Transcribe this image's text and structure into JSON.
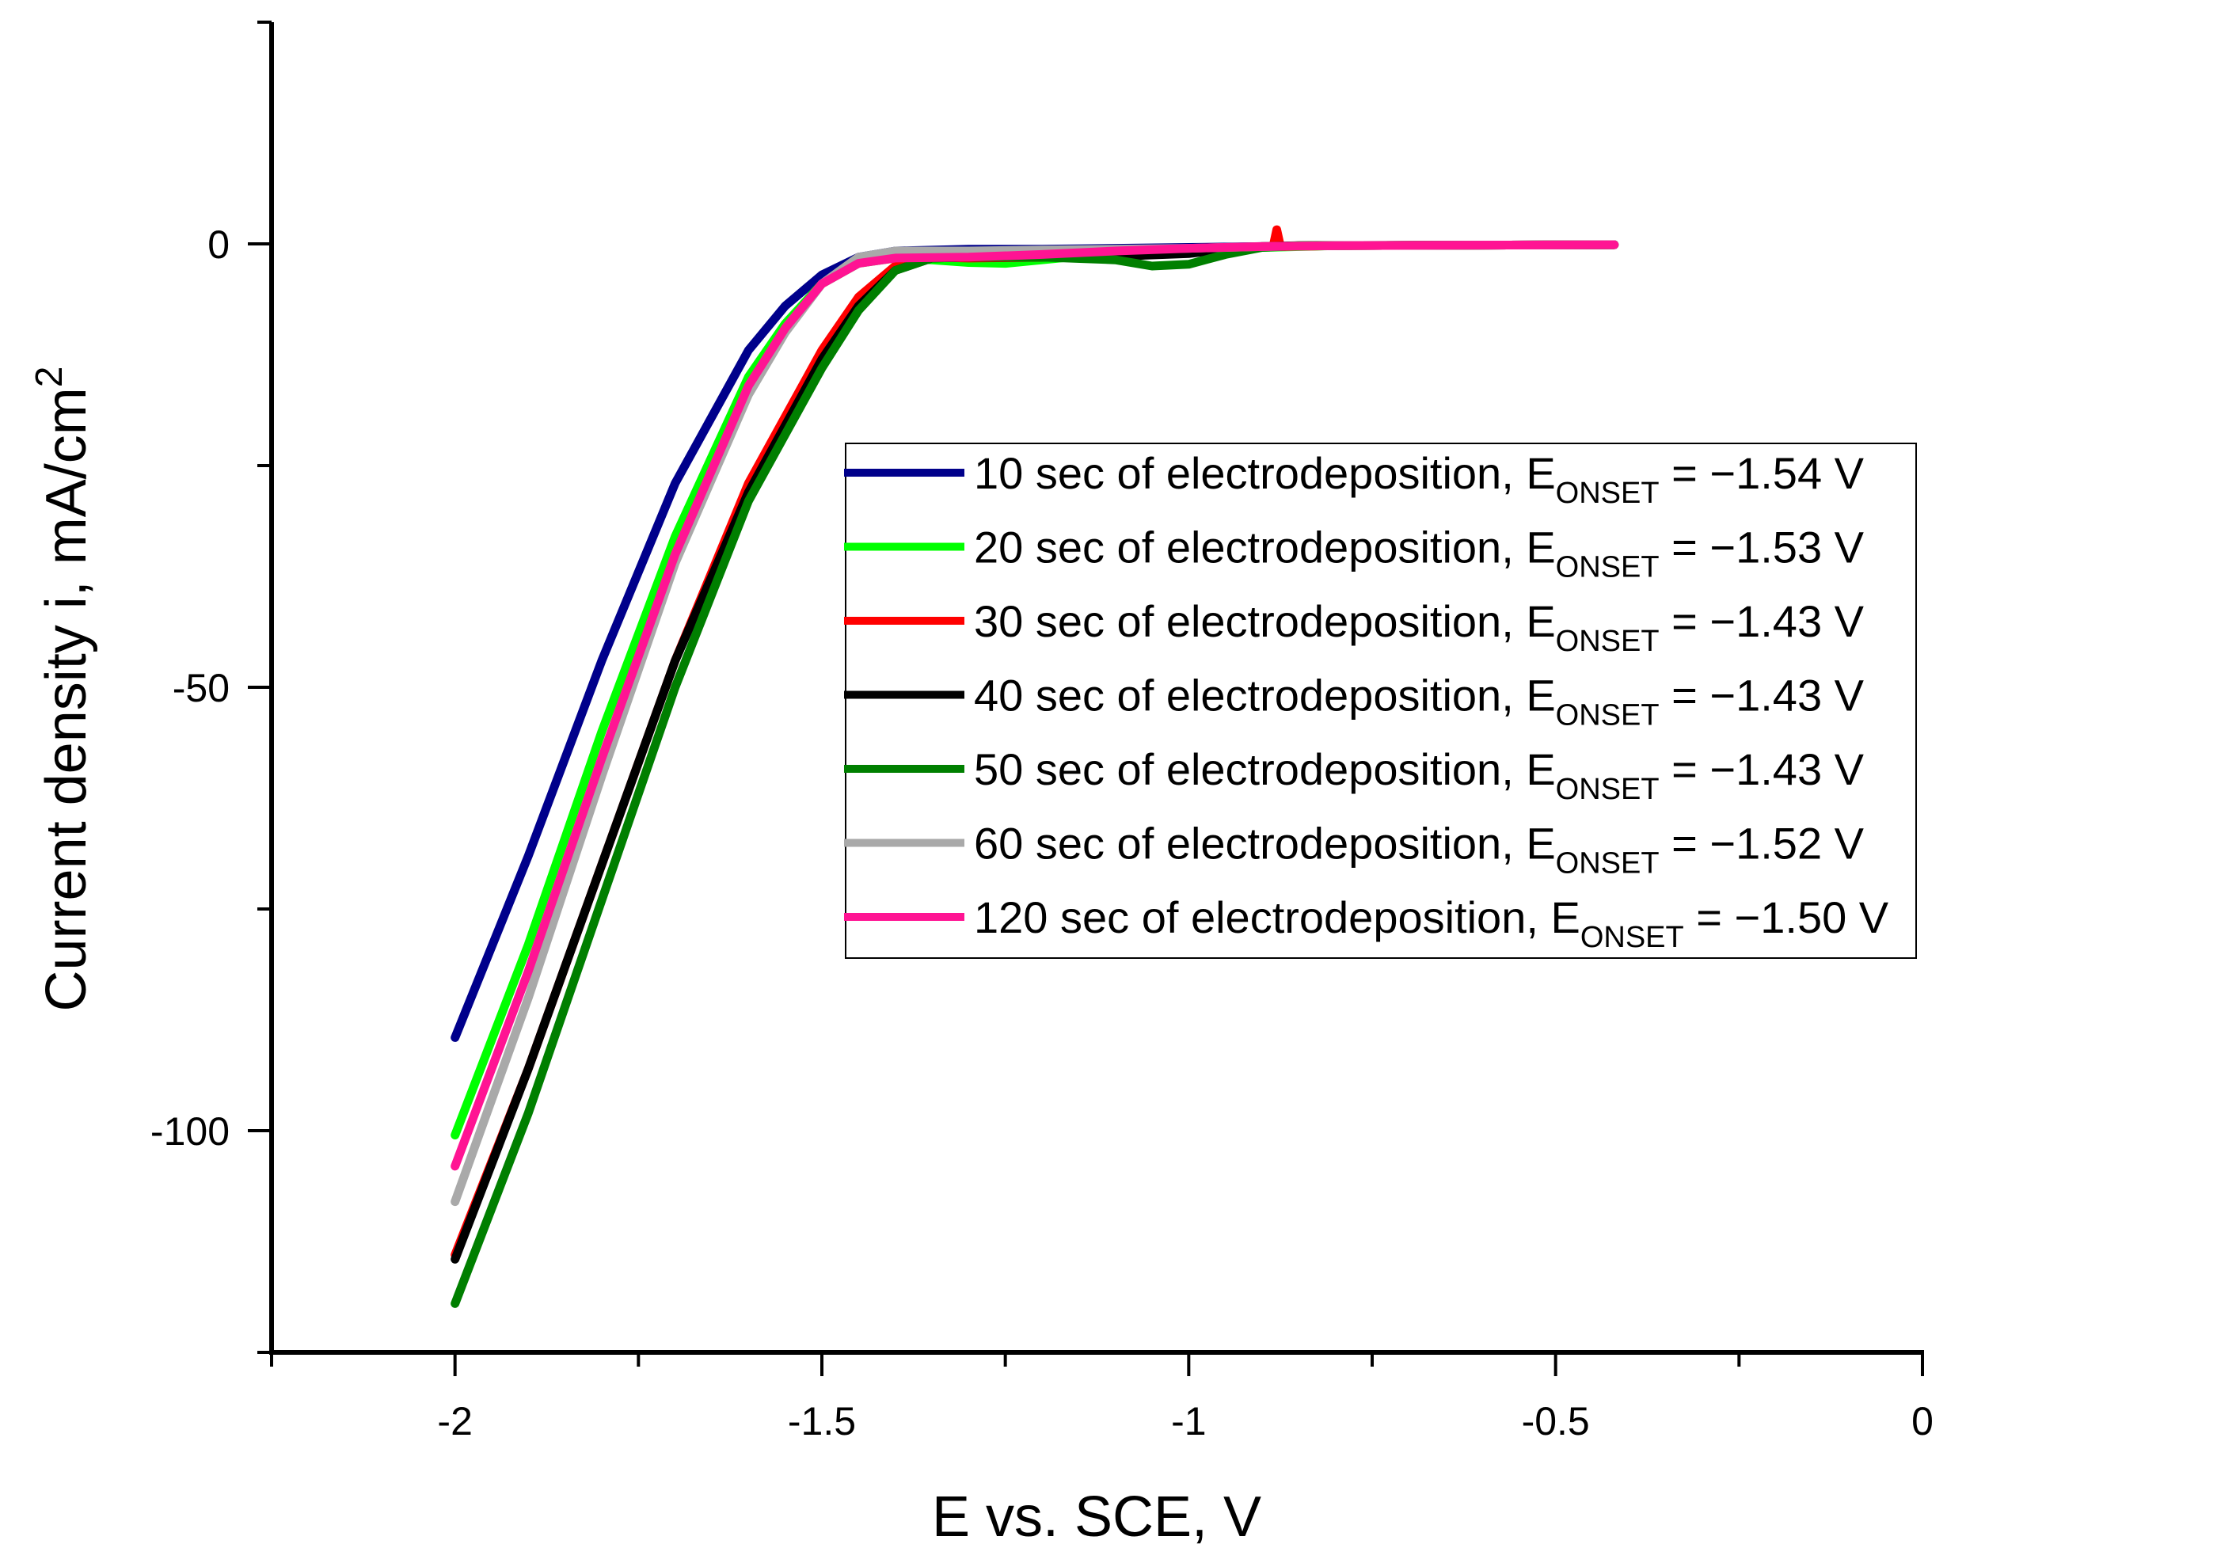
{
  "chart_data": {
    "type": "line",
    "title": "",
    "xlabel": "E vs. SCE, V",
    "ylabel_main": "Current density i, mA/cm",
    "ylabel_sup": "2",
    "xlim": [
      -2.25,
      0
    ],
    "ylim": [
      -125,
      25
    ],
    "x_ticks": [
      {
        "value": -2,
        "label": "-2"
      },
      {
        "value": -1.5,
        "label": "-1.5"
      },
      {
        "value": -1,
        "label": "-1"
      },
      {
        "value": -0.5,
        "label": "-0.5"
      },
      {
        "value": 0,
        "label": "0"
      }
    ],
    "x_minor_ticks": [
      -2.25,
      -1.75,
      -1.25,
      -0.75,
      -0.25
    ],
    "y_ticks": [
      {
        "value": 0,
        "label": "0"
      },
      {
        "value": -50,
        "label": "-50"
      },
      {
        "value": -100,
        "label": "-100"
      }
    ],
    "y_minor_ticks": [
      25,
      -25,
      -75,
      -125
    ],
    "legend_position": "center-right",
    "series": [
      {
        "name": "10 sec",
        "color": "#00008B",
        "legend": {
          "pre": "10 sec of electrodeposition, E",
          "sub": "ONSET",
          "post": " = −1.54 V"
        },
        "points": [
          [
            -2.0,
            -89.5
          ],
          [
            -1.9,
            -69
          ],
          [
            -1.8,
            -47
          ],
          [
            -1.7,
            -27
          ],
          [
            -1.6,
            -12
          ],
          [
            -1.55,
            -7
          ],
          [
            -1.5,
            -3.5
          ],
          [
            -1.45,
            -1.5
          ],
          [
            -1.4,
            -0.8
          ],
          [
            -1.3,
            -0.6
          ],
          [
            -1.2,
            -0.6
          ],
          [
            -1.1,
            -0.5
          ],
          [
            -1.0,
            -0.4
          ],
          [
            -0.9,
            -0.3
          ],
          [
            -0.8,
            -0.2
          ],
          [
            -0.42,
            -0.1
          ]
        ]
      },
      {
        "name": "20 sec",
        "color": "#00FF00",
        "legend": {
          "pre": "20 sec of electrodeposition, E",
          "sub": "ONSET",
          "post": " = −1.53 V"
        },
        "points": [
          [
            -2.0,
            -100.5
          ],
          [
            -1.9,
            -79
          ],
          [
            -1.8,
            -55
          ],
          [
            -1.7,
            -33
          ],
          [
            -1.6,
            -15
          ],
          [
            -1.55,
            -9
          ],
          [
            -1.5,
            -4.5
          ],
          [
            -1.45,
            -2.2
          ],
          [
            -1.4,
            -1.6
          ],
          [
            -1.35,
            -1.8
          ],
          [
            -1.3,
            -2.1
          ],
          [
            -1.25,
            -2.2
          ],
          [
            -1.2,
            -1.8
          ],
          [
            -1.1,
            -1.0
          ],
          [
            -1.0,
            -0.6
          ],
          [
            -0.9,
            -0.4
          ],
          [
            -0.8,
            -0.2
          ],
          [
            -0.42,
            -0.1
          ]
        ]
      },
      {
        "name": "30 sec",
        "color": "#FF0000",
        "legend": {
          "pre": "30 sec of electrodeposition, E",
          "sub": "ONSET",
          "post": " = −1.43 V"
        },
        "points": [
          [
            -2.0,
            -114
          ],
          [
            -1.9,
            -93
          ],
          [
            -1.8,
            -70
          ],
          [
            -1.7,
            -47
          ],
          [
            -1.6,
            -27
          ],
          [
            -1.5,
            -12
          ],
          [
            -1.45,
            -6
          ],
          [
            -1.4,
            -2.5
          ],
          [
            -1.35,
            -1.5
          ],
          [
            -1.3,
            -1.6
          ],
          [
            -1.2,
            -1.5
          ],
          [
            -1.1,
            -1.2
          ],
          [
            -1.0,
            -0.8
          ],
          [
            -0.9,
            -0.3
          ],
          [
            -0.885,
            -0.3
          ],
          [
            -0.88,
            1.6
          ],
          [
            -0.875,
            -0.3
          ],
          [
            -0.8,
            -0.2
          ],
          [
            -0.42,
            -0.1
          ]
        ]
      },
      {
        "name": "40 sec",
        "color": "#000000",
        "legend": {
          "pre": "40 sec of electrodeposition, E",
          "sub": "ONSET",
          "post": " = −1.43 V"
        },
        "points": [
          [
            -2.0,
            -114.5
          ],
          [
            -1.9,
            -93
          ],
          [
            -1.8,
            -70
          ],
          [
            -1.7,
            -47
          ],
          [
            -1.6,
            -28
          ],
          [
            -1.5,
            -13
          ],
          [
            -1.45,
            -7
          ],
          [
            -1.4,
            -3
          ],
          [
            -1.35,
            -1.6
          ],
          [
            -1.3,
            -1.5
          ],
          [
            -1.2,
            -1.5
          ],
          [
            -1.1,
            -1.4
          ],
          [
            -1.0,
            -1.1
          ],
          [
            -0.95,
            -0.6
          ],
          [
            -0.9,
            -0.3
          ],
          [
            -0.85,
            -0.2
          ],
          [
            -0.42,
            -0.1
          ]
        ]
      },
      {
        "name": "50 sec",
        "color": "#007F00",
        "legend": {
          "pre": "50 sec of electrodeposition, E",
          "sub": "ONSET",
          "post": " = −1.43 V"
        },
        "points": [
          [
            -2.0,
            -119.5
          ],
          [
            -1.9,
            -98
          ],
          [
            -1.8,
            -74
          ],
          [
            -1.7,
            -50
          ],
          [
            -1.6,
            -29
          ],
          [
            -1.5,
            -14
          ],
          [
            -1.45,
            -7.5
          ],
          [
            -1.4,
            -3
          ],
          [
            -1.35,
            -1.6
          ],
          [
            -1.3,
            -1.5
          ],
          [
            -1.2,
            -1.5
          ],
          [
            -1.1,
            -1.8
          ],
          [
            -1.05,
            -2.5
          ],
          [
            -1.0,
            -2.3
          ],
          [
            -0.95,
            -1.2
          ],
          [
            -0.9,
            -0.4
          ],
          [
            -0.85,
            -0.2
          ],
          [
            -0.42,
            -0.1
          ]
        ]
      },
      {
        "name": "60 sec",
        "color": "#A9A9A9",
        "legend": {
          "pre": "60 sec of electrodeposition, E",
          "sub": "ONSET",
          "post": " = −1.52 V"
        },
        "points": [
          [
            -2.0,
            -108
          ],
          [
            -1.9,
            -85
          ],
          [
            -1.8,
            -60
          ],
          [
            -1.7,
            -36
          ],
          [
            -1.6,
            -17
          ],
          [
            -1.55,
            -10
          ],
          [
            -1.5,
            -4.5
          ],
          [
            -1.45,
            -1.5
          ],
          [
            -1.4,
            -0.8
          ],
          [
            -1.3,
            -0.8
          ],
          [
            -1.2,
            -0.7
          ],
          [
            -1.1,
            -0.6
          ],
          [
            -1.0,
            -0.5
          ],
          [
            -0.9,
            -0.3
          ],
          [
            -0.8,
            -0.2
          ],
          [
            -0.42,
            -0.1
          ]
        ]
      },
      {
        "name": "120 sec",
        "color": "#FF1493",
        "legend": {
          "pre": "120 sec of electrodeposition, E",
          "sub": "ONSET",
          "post": " = −1.50 V"
        },
        "points": [
          [
            -2.0,
            -104
          ],
          [
            -1.9,
            -82
          ],
          [
            -1.8,
            -58
          ],
          [
            -1.7,
            -35
          ],
          [
            -1.6,
            -16
          ],
          [
            -1.55,
            -9.5
          ],
          [
            -1.5,
            -4.5
          ],
          [
            -1.45,
            -2.2
          ],
          [
            -1.4,
            -1.6
          ],
          [
            -1.3,
            -1.5
          ],
          [
            -1.2,
            -1.2
          ],
          [
            -1.1,
            -0.8
          ],
          [
            -1.0,
            -0.5
          ],
          [
            -0.9,
            -0.3
          ],
          [
            -0.8,
            -0.2
          ],
          [
            -0.42,
            -0.1
          ]
        ]
      }
    ]
  }
}
